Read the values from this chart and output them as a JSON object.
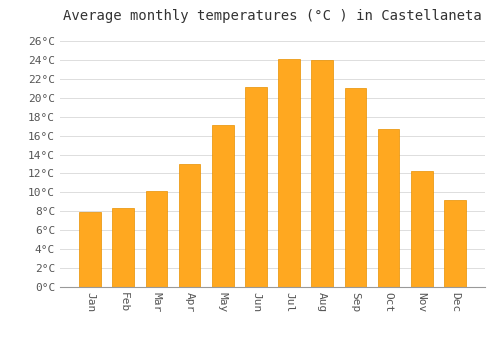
{
  "title": "Average monthly temperatures (°C ) in Castellaneta",
  "months": [
    "Jan",
    "Feb",
    "Mar",
    "Apr",
    "May",
    "Jun",
    "Jul",
    "Aug",
    "Sep",
    "Oct",
    "Nov",
    "Dec"
  ],
  "values": [
    7.9,
    8.3,
    10.1,
    13.0,
    17.1,
    21.1,
    24.1,
    24.0,
    21.0,
    16.7,
    12.3,
    9.2
  ],
  "bar_color": "#FFA820",
  "bar_edge_color": "#E89000",
  "background_color": "#FFFFFF",
  "grid_color": "#DDDDDD",
  "title_fontsize": 10,
  "tick_fontsize": 8,
  "ylim": [
    0,
    27
  ],
  "ytick_step": 2,
  "title_font": "monospace",
  "tick_font": "monospace"
}
